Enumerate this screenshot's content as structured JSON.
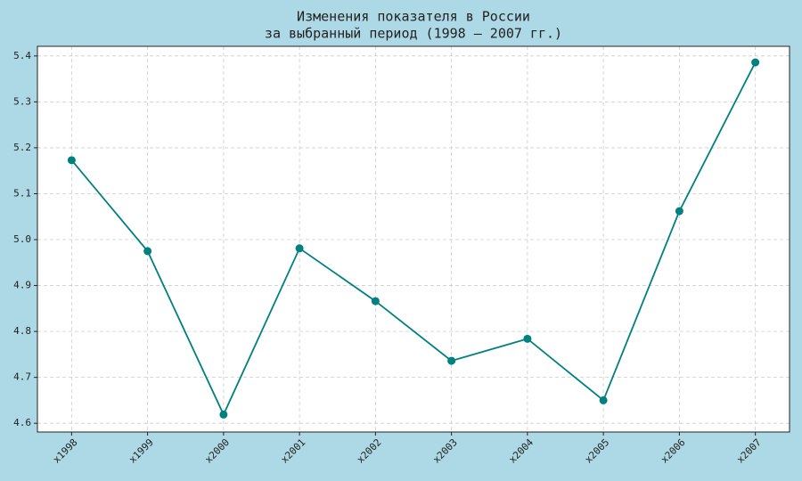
{
  "chart_data": {
    "type": "line",
    "title": [
      "Изменения показателя в России",
      "за выбранный период (1998 – 2007 гг.)"
    ],
    "categories": [
      "x1998",
      "x1999",
      "x2000",
      "x2001",
      "x2002",
      "x2003",
      "x2004",
      "x2005",
      "x2006",
      "x2007"
    ],
    "values": [
      5.173,
      4.975,
      4.619,
      4.981,
      4.866,
      4.736,
      4.784,
      4.65,
      5.062,
      5.386
    ],
    "color": "#008080",
    "ylim": [
      4.581,
      5.421
    ],
    "yticks": [
      4.6,
      4.7,
      4.8,
      4.9,
      {
        "value": 5,
        "label": "5.0"
      },
      5.1,
      5.2,
      5.3,
      5.4
    ],
    "grid": true
  }
}
